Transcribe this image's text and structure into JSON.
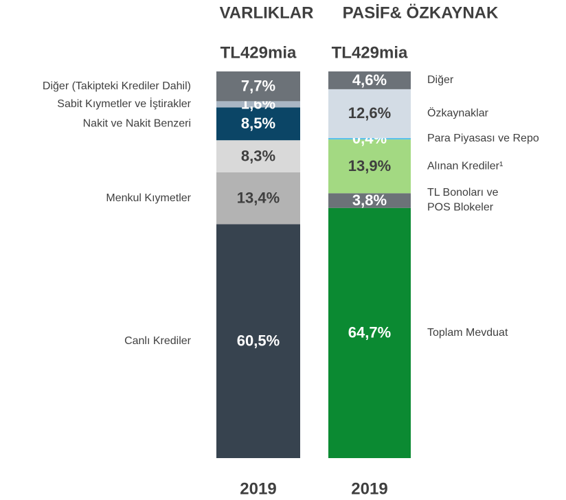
{
  "chart_data": [
    {
      "type": "stacked_bar",
      "title": "VARLIKLAR",
      "subtitle": "TL429mia",
      "categories": [
        "2019"
      ],
      "legend": "left",
      "ylim": [
        0,
        100
      ],
      "series": [
        {
          "name": "Canlı Krediler",
          "color": "#37434f",
          "label_color": "#ffffff",
          "values": [
            60.5
          ],
          "value_labels": [
            "60,5%"
          ]
        },
        {
          "name": "Menkul Kıymetler",
          "color": "#b3b3b3",
          "label_color": "#3f3f3f",
          "values": [
            13.4
          ],
          "value_labels": [
            "13,4%"
          ]
        },
        {
          "color": "#d9d9d9",
          "label_color": "#3f3f3f",
          "values": [
            8.3
          ],
          "value_labels": [
            "8,3%"
          ]
        },
        {
          "name": "Nakit ve Nakit Benzeri",
          "color": "#0b4566",
          "label_color": "#ffffff",
          "values": [
            8.5
          ],
          "value_labels": [
            "8,5%"
          ]
        },
        {
          "name": "Sabit Kıymetler ve İştirakler",
          "color": "#a9b6c4",
          "label_color": "#ffffff",
          "values": [
            1.6
          ],
          "value_labels": [
            "1,6%"
          ]
        },
        {
          "name": "Diğer (Takipteki Krediler Dahil)",
          "color": "#6c7278",
          "label_color": "#ffffff",
          "values": [
            7.7
          ],
          "value_labels": [
            "7,7%"
          ]
        }
      ]
    },
    {
      "type": "stacked_bar",
      "title": "PASİF& ÖZKAYNAK",
      "subtitle": "TL429mia",
      "categories": [
        "2019"
      ],
      "legend": "right",
      "ylim": [
        0,
        100
      ],
      "series": [
        {
          "name": "Toplam Mevduat",
          "color": "#0b8a32",
          "label_color": "#ffffff",
          "values": [
            64.7
          ],
          "value_labels": [
            "64,7%"
          ]
        },
        {
          "name": "TL Bonoları ve\nPOS Blokeler",
          "color": "#6c7278",
          "label_color": "#ffffff",
          "values": [
            3.8
          ],
          "value_labels": [
            "3,8%"
          ]
        },
        {
          "name": "Alınan Krediler¹",
          "color": "#a3d982",
          "label_color": "#3f3f3f",
          "values": [
            13.9
          ],
          "value_labels": [
            "13,9%"
          ]
        },
        {
          "name": "Para Piyasası ve Repo",
          "color": "#5bc0eb",
          "label_color": "#ffffff",
          "values": [
            0.4
          ],
          "value_labels": [
            "0,4%"
          ]
        },
        {
          "name": "Özkaynaklar",
          "color": "#d3dce5",
          "label_color": "#3f3f3f",
          "values": [
            12.6
          ],
          "value_labels": [
            "12,6%"
          ]
        },
        {
          "name": "Diğer",
          "color": "#6c7278",
          "label_color": "#ffffff",
          "values": [
            4.6
          ],
          "value_labels": [
            "4,6%"
          ]
        }
      ]
    }
  ]
}
